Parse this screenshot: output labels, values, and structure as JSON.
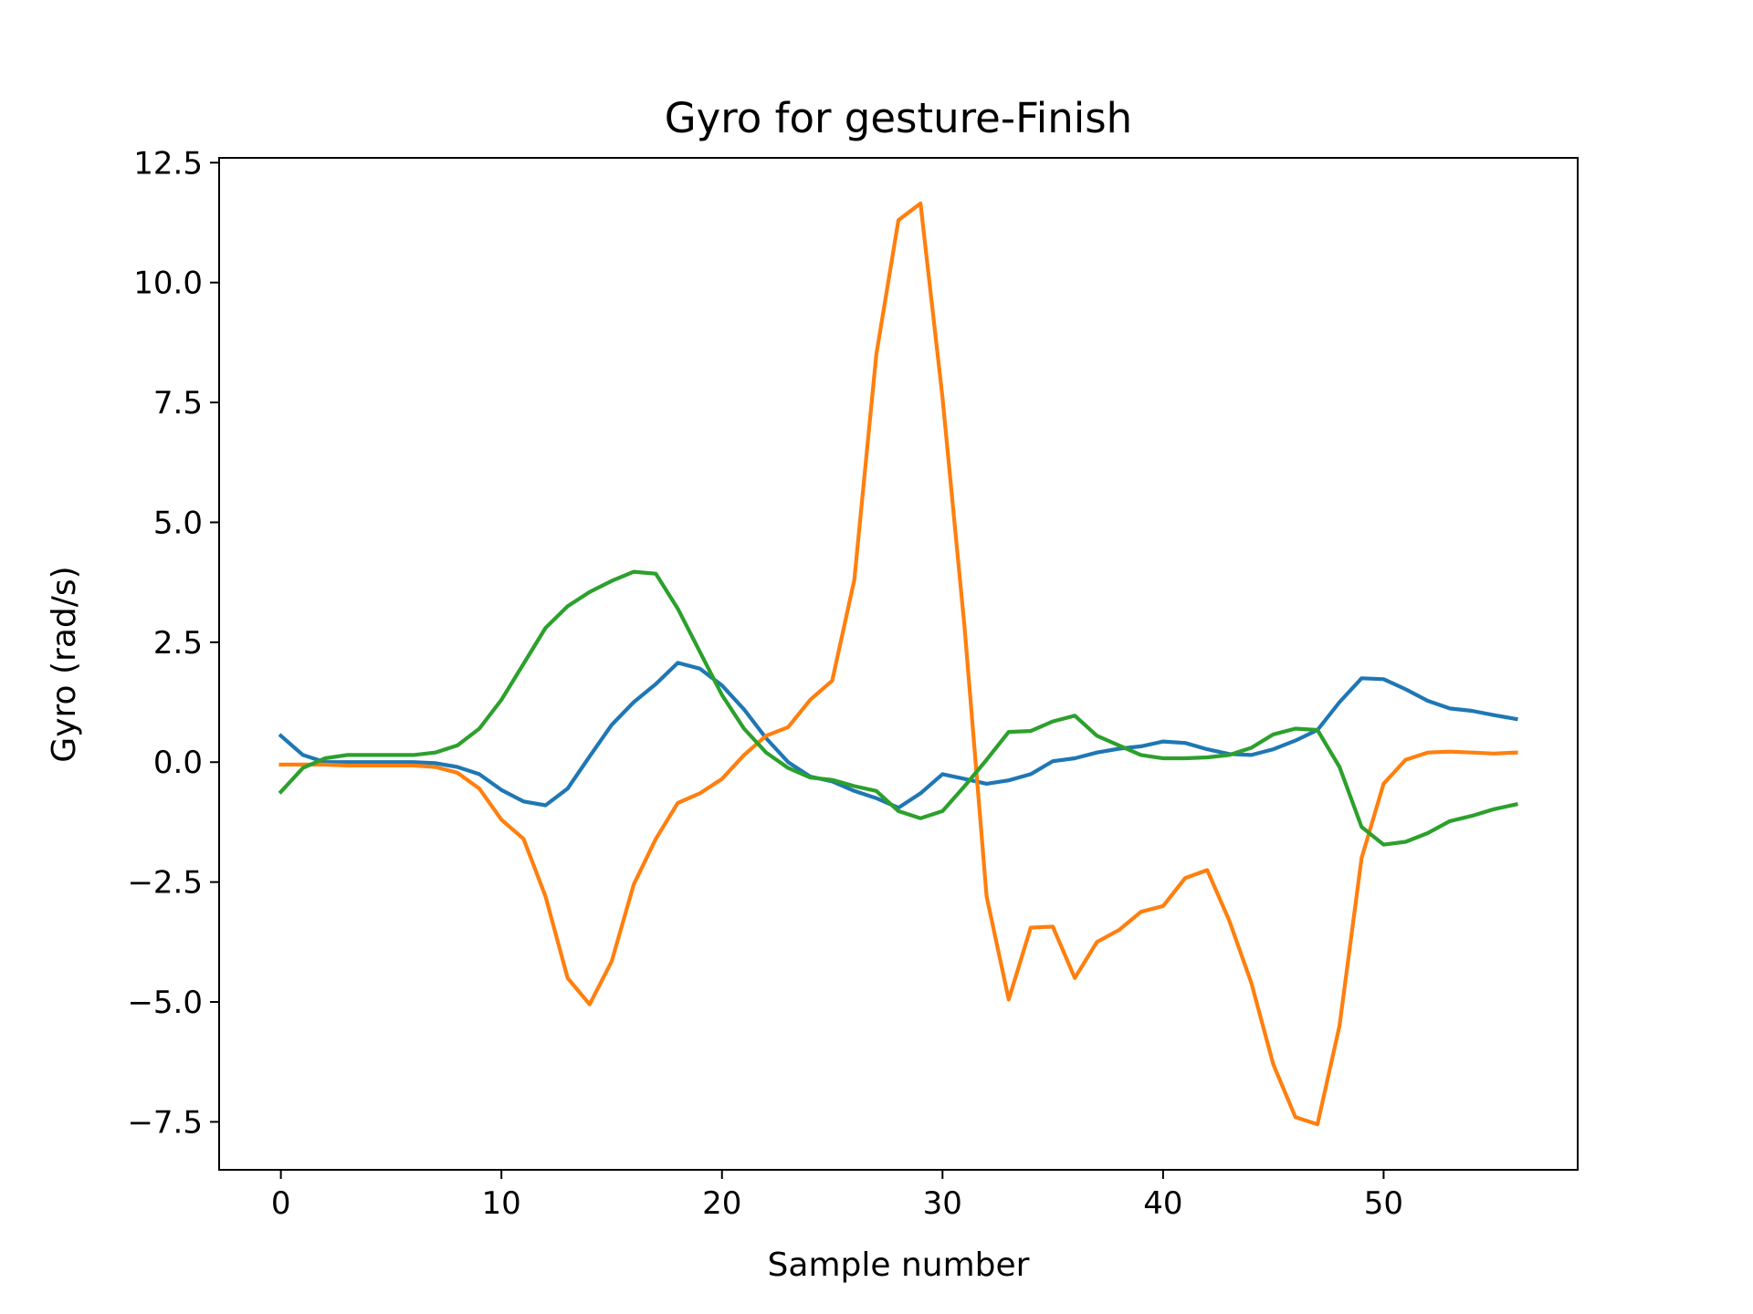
{
  "chart_data": {
    "type": "line",
    "title": "Gyro for gesture-Finish",
    "xlabel": "Sample number",
    "ylabel": "Gyro  (rad/s)",
    "xlim": [
      -2.8,
      58.8
    ],
    "ylim": [
      -8.5,
      12.6
    ],
    "xticks": [
      0,
      10,
      20,
      30,
      40,
      50
    ],
    "yticks": [
      -7.5,
      -5.0,
      -2.5,
      0.0,
      2.5,
      5.0,
      7.5,
      10.0,
      12.5
    ],
    "ytick_labels": [
      "−7.5",
      "−5.0",
      "−2.5",
      "0.0",
      "2.5",
      "5.0",
      "7.5",
      "10.0",
      "12.5"
    ],
    "grid": false,
    "x": [
      0,
      1,
      2,
      3,
      4,
      5,
      6,
      7,
      8,
      9,
      10,
      11,
      12,
      13,
      14,
      15,
      16,
      17,
      18,
      19,
      20,
      21,
      22,
      23,
      24,
      25,
      26,
      27,
      28,
      29,
      30,
      31,
      32,
      33,
      34,
      35,
      36,
      37,
      38,
      39,
      40,
      41,
      42,
      43,
      44,
      45,
      46,
      47,
      48,
      49,
      50,
      51,
      52,
      53,
      54,
      55,
      56
    ],
    "series": [
      {
        "color": "#1f77b4",
        "values": [
          0.55,
          0.15,
          0.0,
          0.0,
          0.0,
          0.0,
          0.0,
          -0.02,
          -0.1,
          -0.25,
          -0.58,
          -0.82,
          -0.9,
          -0.55,
          0.12,
          0.78,
          1.25,
          1.63,
          2.07,
          1.95,
          1.6,
          1.1,
          0.5,
          0.0,
          -0.3,
          -0.4,
          -0.6,
          -0.75,
          -0.95,
          -0.65,
          -0.25,
          -0.35,
          -0.45,
          -0.38,
          -0.25,
          0.02,
          0.08,
          0.2,
          0.28,
          0.33,
          0.43,
          0.4,
          0.27,
          0.17,
          0.15,
          0.27,
          0.45,
          0.67,
          1.25,
          1.75,
          1.73,
          1.52,
          1.28,
          1.12,
          1.07,
          0.98,
          0.9
        ]
      },
      {
        "color": "#ff7f0e",
        "values": [
          -0.05,
          -0.05,
          -0.05,
          -0.07,
          -0.07,
          -0.07,
          -0.07,
          -0.1,
          -0.22,
          -0.55,
          -1.2,
          -1.6,
          -2.8,
          -4.5,
          -5.05,
          -4.15,
          -2.55,
          -1.6,
          -0.85,
          -0.65,
          -0.35,
          0.15,
          0.55,
          0.73,
          1.3,
          1.7,
          3.8,
          8.5,
          11.3,
          11.65,
          7.6,
          2.8,
          -2.8,
          -4.95,
          -3.45,
          -3.43,
          -4.5,
          -3.75,
          -3.5,
          -3.12,
          -3.0,
          -2.42,
          -2.25,
          -3.3,
          -4.6,
          -6.3,
          -7.4,
          -7.55,
          -5.5,
          -2.0,
          -0.45,
          0.05,
          0.2,
          0.22,
          0.2,
          0.18,
          0.2
        ]
      },
      {
        "color": "#2ca02c",
        "values": [
          -0.62,
          -0.12,
          0.08,
          0.15,
          0.15,
          0.15,
          0.15,
          0.2,
          0.35,
          0.7,
          1.3,
          2.05,
          2.8,
          3.25,
          3.55,
          3.78,
          3.97,
          3.93,
          3.2,
          2.3,
          1.4,
          0.7,
          0.2,
          -0.12,
          -0.32,
          -0.37,
          -0.5,
          -0.6,
          -1.02,
          -1.17,
          -1.02,
          -0.5,
          0.05,
          0.63,
          0.65,
          0.85,
          0.97,
          0.55,
          0.35,
          0.15,
          0.08,
          0.08,
          0.1,
          0.15,
          0.3,
          0.58,
          0.7,
          0.67,
          -0.1,
          -1.35,
          -1.72,
          -1.66,
          -1.48,
          -1.23,
          -1.12,
          -0.98,
          -0.88
        ]
      }
    ]
  }
}
